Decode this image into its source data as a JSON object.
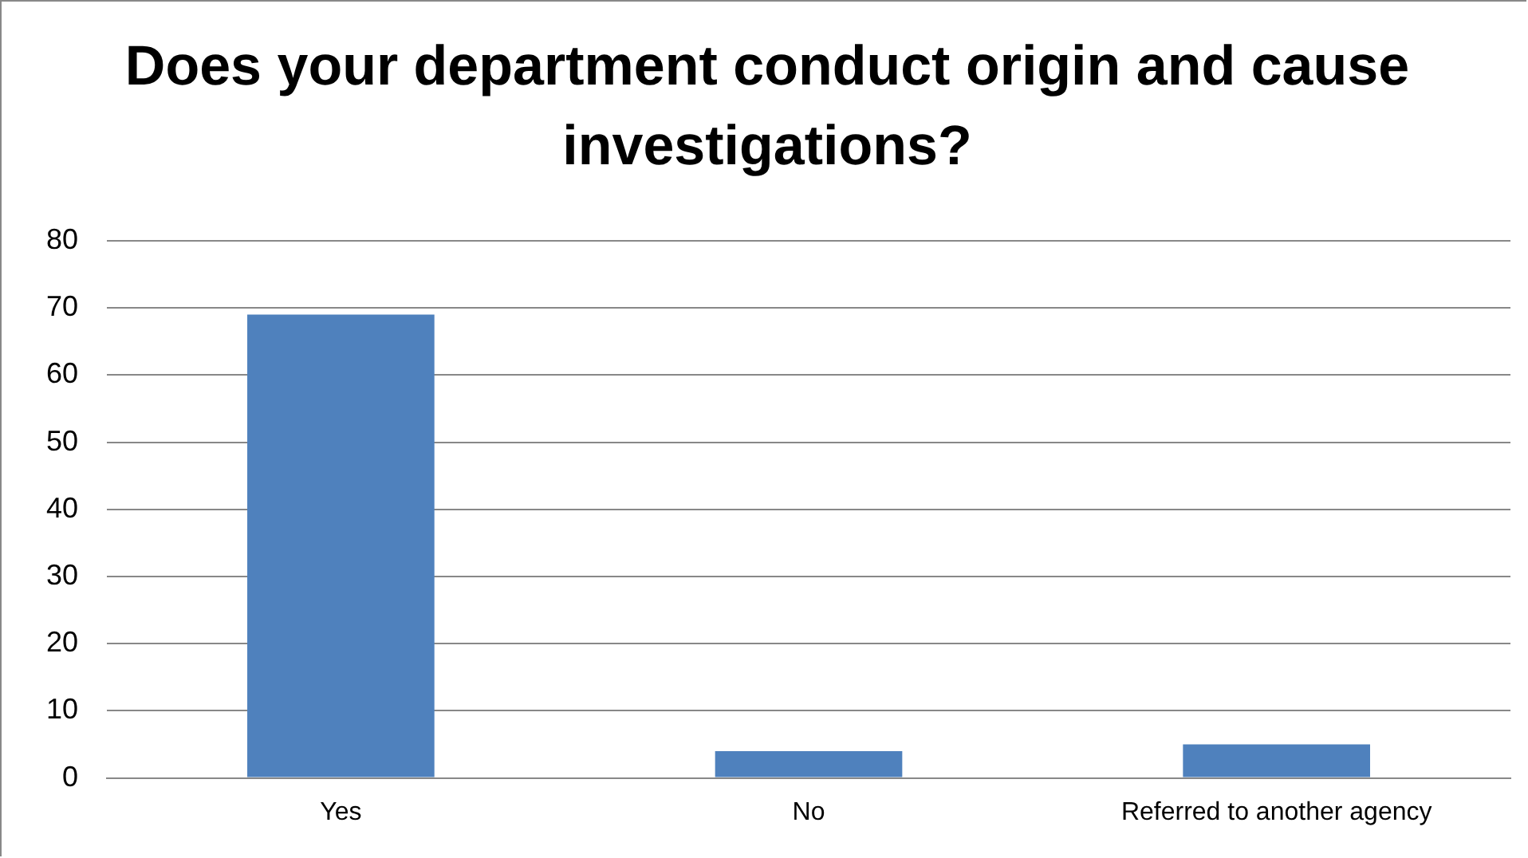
{
  "chart_data": {
    "type": "bar",
    "title": "Does your department conduct origin and cause investigations?",
    "categories": [
      "Yes",
      "No",
      "Referred to another agency"
    ],
    "values": [
      69,
      4,
      5
    ],
    "color": "#4f81bd",
    "ylim": [
      0,
      80
    ],
    "yticks": [
      0,
      10,
      20,
      30,
      40,
      50,
      60,
      70,
      80
    ],
    "grid": "y",
    "legend": false
  }
}
